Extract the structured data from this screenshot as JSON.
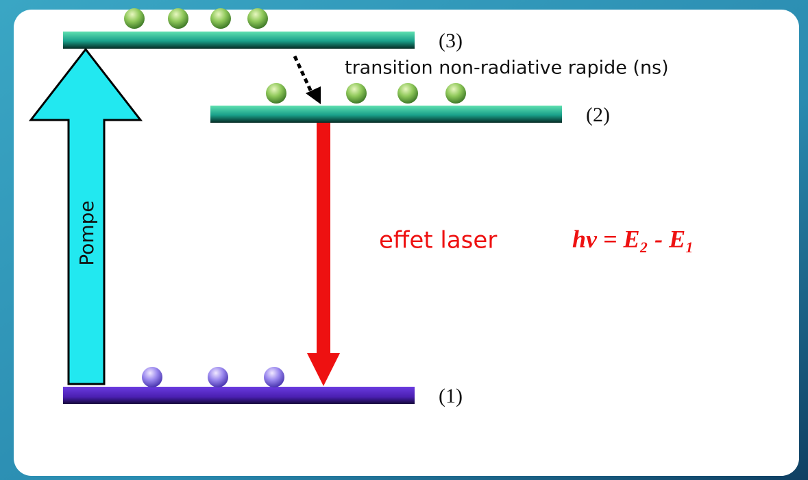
{
  "levels": {
    "top": "(3)",
    "middle": "(2)",
    "bottom": "(1)"
  },
  "transition": "transition non-radiative rapide (ns)",
  "pump": "Pompe",
  "laser": {
    "label": "effet laser",
    "formula": "hν = E₂ - E₁"
  }
}
